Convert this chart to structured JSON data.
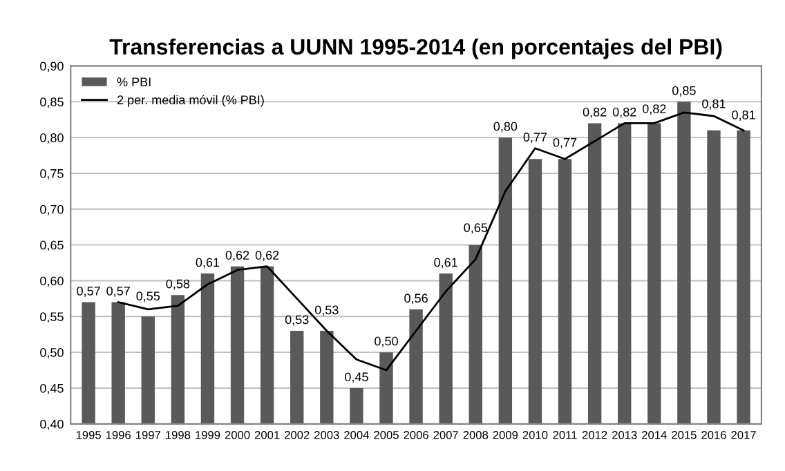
{
  "chart_data": {
    "type": "bar",
    "title": "Transferencias a UUNN 1995-2014 (en porcentajes del PBI)",
    "categories": [
      "1995",
      "1996",
      "1997",
      "1998",
      "1999",
      "2000",
      "2001",
      "2002",
      "2003",
      "2004",
      "2005",
      "2006",
      "2007",
      "2008",
      "2009",
      "2010",
      "2011",
      "2012",
      "2013",
      "2014",
      "2015",
      "2016",
      "2017"
    ],
    "series": [
      {
        "name": "% PBI",
        "color": "#595959",
        "values": [
          0.57,
          0.57,
          0.55,
          0.58,
          0.61,
          0.62,
          0.62,
          0.53,
          0.53,
          0.45,
          0.5,
          0.56,
          0.61,
          0.65,
          0.8,
          0.77,
          0.77,
          0.82,
          0.82,
          0.82,
          0.85,
          0.81,
          0.81
        ],
        "value_labels": [
          "0,57",
          "0,57",
          "0,55",
          "0,58",
          "0,61",
          "0,62",
          "0,62",
          "0,53",
          "0,53",
          "0,45",
          "0,50",
          "0,56",
          "0,61",
          "0,65",
          "0,80",
          "0,77",
          "0,77",
          "0,82",
          "0,82",
          "0,82",
          "0,85",
          "0,81",
          "0,81"
        ]
      },
      {
        "name": "2 per. media móvil (% PBI)",
        "type": "line",
        "color": "#000000",
        "values": [
          null,
          0.57,
          0.56,
          0.565,
          0.595,
          0.615,
          0.62,
          0.575,
          0.53,
          0.49,
          0.475,
          0.53,
          0.585,
          0.63,
          0.725,
          0.785,
          0.77,
          0.795,
          0.82,
          0.82,
          0.835,
          0.83,
          0.81
        ]
      }
    ],
    "ylim": [
      0.4,
      0.9
    ],
    "yticks": [
      {
        "value": 0.4,
        "label": "0,40"
      },
      {
        "value": 0.45,
        "label": "0,45"
      },
      {
        "value": 0.5,
        "label": "0,50"
      },
      {
        "value": 0.55,
        "label": "0,55"
      },
      {
        "value": 0.6,
        "label": "0,60"
      },
      {
        "value": 0.65,
        "label": "0,65"
      },
      {
        "value": 0.7,
        "label": "0,70"
      },
      {
        "value": 0.75,
        "label": "0,75"
      },
      {
        "value": 0.8,
        "label": "0,80"
      },
      {
        "value": 0.85,
        "label": "0,85"
      },
      {
        "value": 0.9,
        "label": "0,90"
      }
    ],
    "grid": "y",
    "legend": "top left",
    "marker": "none",
    "line_style": "solid"
  }
}
